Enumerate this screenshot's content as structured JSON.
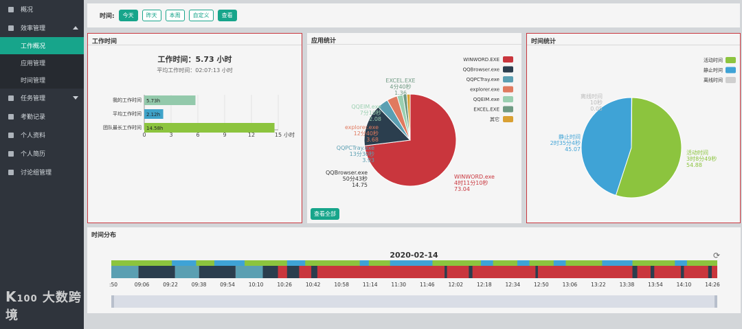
{
  "sidebar": {
    "items": [
      {
        "label": "概况"
      },
      {
        "label": "效率管理"
      },
      {
        "label": "任务管理"
      },
      {
        "label": "考勤记录"
      },
      {
        "label": "个人资料"
      },
      {
        "label": "个人简历"
      },
      {
        "label": "讨论组管理"
      }
    ],
    "sub": [
      {
        "label": "工作概况"
      },
      {
        "label": "应用管理"
      },
      {
        "label": "时间管理"
      }
    ],
    "logo": "大数跨境"
  },
  "filter": {
    "label": "时间:",
    "buttons": [
      "今天",
      "昨天",
      "本周",
      "自定义"
    ],
    "query": "查看"
  },
  "work": {
    "title": "工作时间",
    "headline": "工作时间：5.73 小时",
    "avg": "平均工作时间：02:07:13 小时",
    "unit": "小时",
    "chart_data": {
      "type": "bar",
      "orientation": "horizontal",
      "categories": [
        "我的工作时间",
        "平均工作时间",
        "团队最长工作时间"
      ],
      "values": [
        5.73,
        2.12,
        14.58
      ],
      "labels": [
        "5.73h",
        "2.12h",
        "14.58h"
      ],
      "colors": [
        "#93c9ab",
        "#3fa3c9",
        "#8cc43e"
      ],
      "xticks": [
        "0",
        "3",
        "6",
        "9",
        "12",
        "15"
      ],
      "xlim": [
        0,
        15
      ]
    }
  },
  "apps": {
    "title": "应用统计",
    "view_all": "查看全部",
    "chart_data": {
      "type": "pie",
      "slices": [
        {
          "name": "WINWORD.exe",
          "time": "4时11分10秒",
          "value": 73.04,
          "color": "#c9363d"
        },
        {
          "name": "QQBrowser.exe",
          "time": "50分43秒",
          "value": 14.75,
          "color": "#2b3e4e"
        },
        {
          "name": "QQPCTray.exe",
          "time": "13分30秒",
          "value": 3.93,
          "color": "#5b9fb2"
        },
        {
          "name": "explorer.exe",
          "time": "12分40秒",
          "value": 3.68,
          "color": "#e07a5f"
        },
        {
          "name": "QQEIM.exe",
          "time": "7分10秒",
          "value": 2.08,
          "color": "#9acfb0"
        },
        {
          "name": "EXCEL.EXE",
          "time": "4分40秒",
          "value": 1.36,
          "color": "#6f9a83"
        },
        {
          "name": "其它",
          "time": "",
          "value": 1.16,
          "color": "#d9a033"
        }
      ],
      "legend": [
        "WINWORD.EXE",
        "QQBrowser.exe",
        "QQPCTray.exe",
        "explorer.exe",
        "QQEIM.exe",
        "EXCEL.EXE",
        "其它"
      ]
    }
  },
  "timestat": {
    "title": "时间统计",
    "chart_data": {
      "type": "pie",
      "slices": [
        {
          "name": "活动时间",
          "time": "3时8分49秒",
          "value": 54.88,
          "color": "#8cc43e"
        },
        {
          "name": "静止时间",
          "time": "2时35分4秒",
          "value": 45.07,
          "color": "#3fa3d6"
        },
        {
          "name": "离线时间",
          "time": "10秒",
          "value": 0.05,
          "color": "#cfcfcf"
        }
      ],
      "legend": [
        "活动时间",
        "静止时间",
        "离线时间"
      ]
    }
  },
  "dist": {
    "title": "时间分布",
    "date": "2020-02-14",
    "ticks": [
      ":50",
      "09:06",
      "09:22",
      "09:38",
      "09:54",
      "10:10",
      "10:26",
      "10:42",
      "10:58",
      "11:14",
      "11:30",
      "11:46",
      "12:02",
      "12:18",
      "12:34",
      "12:50",
      "13:06",
      "13:22",
      "13:38",
      "13:54",
      "14:10",
      "14:26"
    ]
  }
}
